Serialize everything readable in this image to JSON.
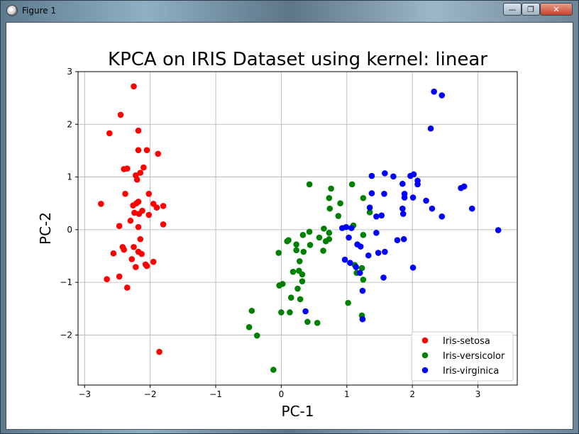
{
  "window": {
    "title": "Figure 1",
    "controls": {
      "minimize": "—",
      "maximize": "❐",
      "close": "✕"
    }
  },
  "colors": {
    "Iris-setosa": "#ff0000",
    "Iris-versicolor": "#008000",
    "Iris-virginica": "#0000ff"
  },
  "chart_data": {
    "type": "scatter",
    "title": "KPCA on IRIS Dataset using kernel: linear",
    "xlabel": "PC-1",
    "ylabel": "PC-2",
    "xlim": [
      -3.1,
      3.6
    ],
    "ylim": [
      -2.95,
      3.0
    ],
    "xticks": [
      -3,
      -2,
      -1,
      0,
      1,
      2,
      3
    ],
    "yticks": [
      -2,
      -1,
      0,
      1,
      2,
      3
    ],
    "xtick_labels": [
      "−3",
      "−2",
      "−1",
      "0",
      "1",
      "2",
      "3"
    ],
    "ytick_labels": [
      "−2",
      "−1",
      "0",
      "1",
      "2",
      "3"
    ],
    "grid": true,
    "legend_position": "lower-right",
    "series": [
      {
        "name": "Iris-setosa",
        "color": "#ff0000",
        "points": [
          [
            -2.25,
            2.72
          ],
          [
            -2.45,
            2.18
          ],
          [
            -2.62,
            1.83
          ],
          [
            -2.18,
            1.88
          ],
          [
            -2.18,
            1.51
          ],
          [
            -2.05,
            1.51
          ],
          [
            -1.88,
            1.44
          ],
          [
            -2.4,
            1.15
          ],
          [
            -2.35,
            1.16
          ],
          [
            -2.1,
            1.18
          ],
          [
            -2.15,
            1.08
          ],
          [
            -2.22,
            1.03
          ],
          [
            -2.2,
            0.95
          ],
          [
            -2.38,
            0.68
          ],
          [
            -2.02,
            0.68
          ],
          [
            -2.26,
            0.46
          ],
          [
            -2.21,
            0.5
          ],
          [
            -2.18,
            0.53
          ],
          [
            -2.75,
            0.49
          ],
          [
            -1.95,
            0.49
          ],
          [
            -1.9,
            0.42
          ],
          [
            -1.8,
            0.45
          ],
          [
            -2.24,
            0.32
          ],
          [
            -2.17,
            0.3
          ],
          [
            -2.12,
            0.36
          ],
          [
            -2.02,
            0.28
          ],
          [
            -2.3,
            0.17
          ],
          [
            -2.18,
            0.05
          ],
          [
            -2.47,
            0.07
          ],
          [
            -1.8,
            0.1
          ],
          [
            -2.15,
            -0.18
          ],
          [
            -2.25,
            -0.33
          ],
          [
            -2.42,
            -0.33
          ],
          [
            -2.4,
            -0.38
          ],
          [
            -2.56,
            -0.45
          ],
          [
            -2.18,
            -0.42
          ],
          [
            -2.13,
            -0.46
          ],
          [
            -2.28,
            -0.56
          ],
          [
            -1.95,
            -0.61
          ],
          [
            -2.07,
            -0.66
          ],
          [
            -2.05,
            -0.69
          ],
          [
            -2.22,
            -0.71
          ],
          [
            -2.47,
            -0.89
          ],
          [
            -2.66,
            -0.94
          ],
          [
            -2.35,
            -1.1
          ],
          [
            -1.86,
            -2.32
          ]
        ]
      },
      {
        "name": "Iris-versicolor",
        "color": "#008000",
        "points": [
          [
            1.08,
            0.86
          ],
          [
            0.43,
            0.86
          ],
          [
            0.76,
            0.78
          ],
          [
            0.73,
            0.6
          ],
          [
            1.25,
            0.6
          ],
          [
            0.9,
            0.5
          ],
          [
            0.74,
            0.4
          ],
          [
            1.35,
            0.33
          ],
          [
            0.87,
            0.26
          ],
          [
            1.1,
            0.08
          ],
          [
            0.65,
            0.02
          ],
          [
            0.43,
            -0.04
          ],
          [
            0.73,
            -0.06
          ],
          [
            0.58,
            -0.15
          ],
          [
            0.33,
            -0.1
          ],
          [
            1.25,
            -0.1
          ],
          [
            0.73,
            -0.18
          ],
          [
            0.68,
            -0.22
          ],
          [
            0.09,
            -0.22
          ],
          [
            0.11,
            -0.2
          ],
          [
            0.23,
            -0.28
          ],
          [
            0.44,
            -0.29
          ],
          [
            0.23,
            -0.39
          ],
          [
            -0.04,
            -0.44
          ],
          [
            0.64,
            -0.4
          ],
          [
            0.34,
            -0.42
          ],
          [
            0.28,
            -0.6
          ],
          [
            0.18,
            -0.8
          ],
          [
            0.27,
            -0.78
          ],
          [
            0.32,
            -0.85
          ],
          [
            1.12,
            -0.67
          ],
          [
            1.23,
            -0.73
          ],
          [
            1.15,
            -0.82
          ],
          [
            1.25,
            -0.95
          ],
          [
            0.32,
            -0.98
          ],
          [
            0.02,
            -1.03
          ],
          [
            -0.03,
            -1.06
          ],
          [
            0.25,
            -1.12
          ],
          [
            0.15,
            -1.29
          ],
          [
            0.29,
            -1.32
          ],
          [
            1.02,
            -1.39
          ],
          [
            0.0,
            -1.57
          ],
          [
            0.13,
            -1.57
          ],
          [
            0.4,
            -1.75
          ],
          [
            0.55,
            -1.77
          ],
          [
            -0.45,
            -1.54
          ],
          [
            -0.49,
            -1.85
          ],
          [
            -0.37,
            -2.01
          ],
          [
            -0.12,
            -2.66
          ],
          [
            1.23,
            -1.63
          ]
        ]
      },
      {
        "name": "Iris-virginica",
        "color": "#0000ff",
        "points": [
          [
            2.33,
            2.62
          ],
          [
            2.45,
            2.55
          ],
          [
            2.28,
            1.92
          ],
          [
            1.38,
            1.02
          ],
          [
            1.58,
            1.07
          ],
          [
            1.71,
            1.01
          ],
          [
            1.97,
            1.02
          ],
          [
            2.02,
            1.05
          ],
          [
            2.08,
            0.93
          ],
          [
            2.08,
            0.86
          ],
          [
            1.85,
            0.87
          ],
          [
            2.79,
            0.82
          ],
          [
            2.74,
            0.79
          ],
          [
            1.38,
            0.69
          ],
          [
            1.57,
            0.68
          ],
          [
            1.88,
            0.68
          ],
          [
            1.88,
            0.61
          ],
          [
            2.01,
            0.61
          ],
          [
            2.21,
            0.55
          ],
          [
            1.85,
            0.4
          ],
          [
            2.3,
            0.4
          ],
          [
            2.91,
            0.4
          ],
          [
            1.35,
            0.42
          ],
          [
            1.45,
            0.25
          ],
          [
            1.53,
            0.27
          ],
          [
            1.86,
            0.3
          ],
          [
            2.45,
            0.25
          ],
          [
            0.93,
            0.03
          ],
          [
            0.99,
            0.05
          ],
          [
            1.07,
            0.03
          ],
          [
            1.45,
            -0.06
          ],
          [
            1.03,
            -0.15
          ],
          [
            1.16,
            -0.28
          ],
          [
            1.21,
            -0.32
          ],
          [
            1.77,
            -0.2
          ],
          [
            1.87,
            -0.18
          ],
          [
            1.48,
            -0.44
          ],
          [
            1.58,
            -0.42
          ],
          [
            1.33,
            -0.49
          ],
          [
            0.97,
            -0.57
          ],
          [
            1.05,
            -0.63
          ],
          [
            1.14,
            -0.71
          ],
          [
            1.2,
            -0.82
          ],
          [
            1.56,
            -0.91
          ],
          [
            2.01,
            -0.72
          ],
          [
            1.24,
            -1.16
          ],
          [
            0.37,
            -1.55
          ],
          [
            1.24,
            -1.7
          ],
          [
            3.31,
            -0.01
          ]
        ]
      }
    ]
  }
}
